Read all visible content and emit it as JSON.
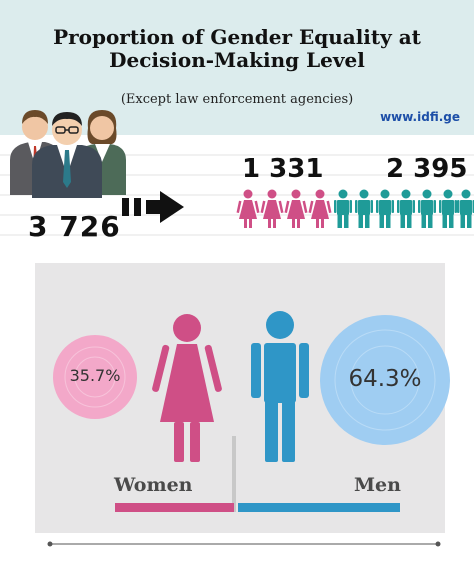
{
  "header": {
    "title_line1": "Proportion of Gender Equality at",
    "title_line2": "Decision-Making Level",
    "subtitle": "(Except law enforcement agencies)",
    "site": "www.idfi.ge"
  },
  "totals": {
    "all": "3 726",
    "women": "1 331",
    "men": "2 395"
  },
  "icons": {
    "group": "business-people-icon",
    "arrow": "dashed-arrow-right-icon",
    "woman": "woman-figure-icon",
    "man": "man-figure-icon",
    "women_count_figures": 4,
    "men_count_figures": 7
  },
  "comparison": {
    "women_pct": "35.7%",
    "men_pct": "64.3%",
    "women_label": "Women",
    "men_label": "Men",
    "women_fraction": 0.357,
    "men_fraction": 0.643
  },
  "colors": {
    "header_bg": "#dceced",
    "women": "#cf4f86",
    "women_light": "#f3a8c9",
    "men": "#2f96c7",
    "men_light": "#9fcdf2",
    "men_teal": "#1f9b98",
    "panel_bg": "#e7e6e7"
  }
}
